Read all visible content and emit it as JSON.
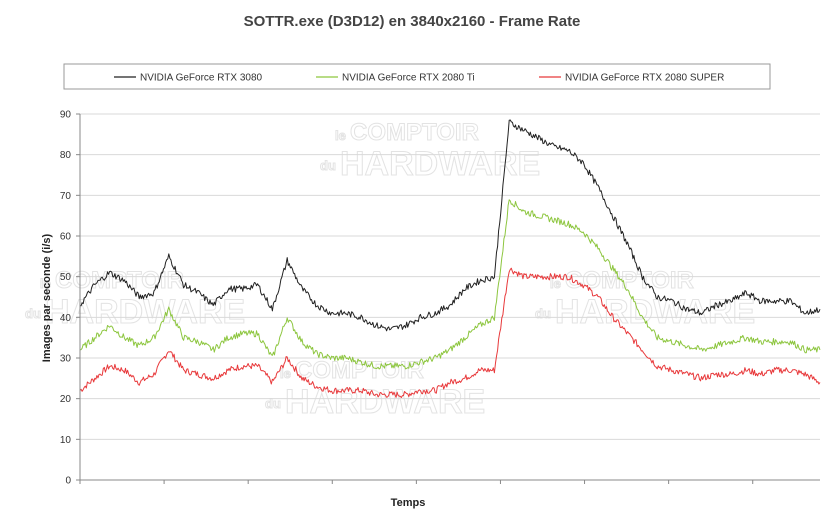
{
  "chart_data": {
    "type": "line",
    "title": "SOTTR.exe (D3D12) en 3840x2160 - Frame Rate",
    "xlabel": "Temps",
    "ylabel": "Images par seconde (i/s)",
    "ylim": [
      0,
      90
    ],
    "yticks": [
      "0",
      "10",
      "20",
      "30",
      "40",
      "50",
      "60",
      "70",
      "80",
      "90"
    ],
    "grid": true,
    "legend_position": "top",
    "watermark": [
      "le",
      "COMPTOIR",
      "du",
      "HARDWARE"
    ],
    "x": [
      0,
      2,
      4,
      6,
      8,
      10,
      12,
      14,
      16,
      18,
      20,
      22,
      24,
      26,
      28,
      30,
      32,
      34,
      36,
      38,
      40,
      42,
      44,
      46,
      48,
      50,
      52,
      54,
      56,
      58,
      60,
      62,
      64,
      66,
      68,
      70,
      72,
      74,
      76,
      78,
      80,
      82,
      84,
      86,
      88,
      90,
      92,
      94,
      96,
      98,
      100
    ],
    "series": [
      {
        "name": "NVIDIA GeForce RTX 3080",
        "color": "#222222",
        "values": [
          43,
          48,
          51,
          49,
          45,
          46,
          55,
          48,
          46,
          43,
          47,
          47,
          48,
          42,
          54,
          47,
          43,
          41,
          41,
          40,
          38,
          37,
          38,
          40,
          41,
          43,
          47,
          49,
          50,
          88,
          86,
          84,
          82,
          81,
          78,
          72,
          65,
          58,
          50,
          45,
          44,
          42,
          41,
          43,
          44,
          46,
          44,
          44,
          44,
          41,
          42
        ]
      },
      {
        "name": "NVIDIA GeForce RTX 2080 Ti",
        "color": "#8dc63f",
        "values": [
          32,
          35,
          38,
          35,
          33,
          35,
          42,
          35,
          34,
          32,
          35,
          36,
          36,
          30,
          40,
          34,
          31,
          30,
          30,
          29,
          28,
          28,
          28,
          29,
          30,
          32,
          35,
          38,
          40,
          69,
          66,
          65,
          64,
          63,
          61,
          57,
          52,
          47,
          40,
          35,
          34,
          33,
          32,
          33,
          34,
          35,
          34,
          34,
          34,
          32,
          32
        ]
      },
      {
        "name": "NVIDIA GeForce RTX 2080 SUPER",
        "color": "#e8393b",
        "values": [
          22,
          25,
          28,
          27,
          24,
          26,
          32,
          27,
          26,
          25,
          27,
          28,
          28,
          24,
          30,
          25,
          23,
          22,
          22,
          22,
          21,
          21,
          21,
          22,
          22,
          24,
          25,
          27,
          27,
          52,
          50,
          50,
          50,
          50,
          48,
          45,
          40,
          36,
          32,
          28,
          27,
          26,
          25,
          26,
          26,
          27,
          26,
          27,
          27,
          26,
          24
        ]
      }
    ]
  }
}
